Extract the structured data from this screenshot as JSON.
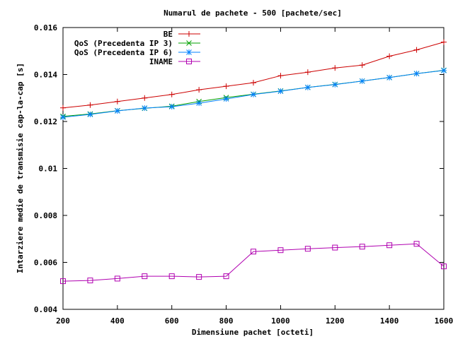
{
  "chart_data": {
    "type": "line",
    "title": "Numarul de pachete - 500 [pachete/sec]",
    "xlabel": "Dimensiune pachet [octeti]",
    "ylabel": "Intarziere medie de transmisie cap-la-cap [s]",
    "xlim": [
      200,
      1600
    ],
    "ylim": [
      0.004,
      0.016
    ],
    "xticks": [
      200,
      400,
      600,
      800,
      1000,
      1200,
      1400,
      1600
    ],
    "yticks": [
      0.004,
      0.006,
      0.008,
      0.01,
      0.012,
      0.014,
      0.016
    ],
    "ytick_labels": [
      "0.004",
      "0.006",
      "0.008",
      "0.01",
      "0.012",
      "0.014",
      "0.016"
    ],
    "grid": false,
    "legend_position": "top-right",
    "x": [
      200,
      300,
      400,
      500,
      600,
      700,
      800,
      900,
      1000,
      1100,
      1200,
      1300,
      1400,
      1500,
      1600
    ],
    "series": [
      {
        "name": "BE",
        "color": "#cc0000",
        "marker": "plus",
        "values": [
          0.01258,
          0.0127,
          0.01285,
          0.013,
          0.01315,
          0.01335,
          0.0135,
          0.01365,
          0.01395,
          0.0141,
          0.01428,
          0.0144,
          0.01478,
          0.01505,
          0.01538
        ]
      },
      {
        "name": "QoS (Precedenta IP 3)",
        "color": "#00a000",
        "marker": "cross",
        "values": [
          0.01222,
          0.01232,
          0.01246,
          0.01256,
          0.01265,
          0.01285,
          0.01302,
          0.01316,
          0.0133,
          0.01345,
          0.01358,
          0.01372,
          0.01387,
          0.01404,
          0.01418
        ]
      },
      {
        "name": "QoS (Precedenta IP 6)",
        "color": "#0080ff",
        "marker": "star",
        "values": [
          0.01218,
          0.0123,
          0.01245,
          0.01257,
          0.01263,
          0.01278,
          0.01296,
          0.01315,
          0.01329,
          0.01345,
          0.01357,
          0.01372,
          0.01387,
          0.01404,
          0.01417
        ]
      },
      {
        "name": "INAME",
        "color": "#b000b0",
        "marker": "square",
        "values": [
          0.0052,
          0.00523,
          0.00531,
          0.00541,
          0.00541,
          0.00538,
          0.00541,
          0.00646,
          0.00652,
          0.00658,
          0.00663,
          0.00667,
          0.00673,
          0.00679,
          0.00583
        ]
      }
    ]
  }
}
